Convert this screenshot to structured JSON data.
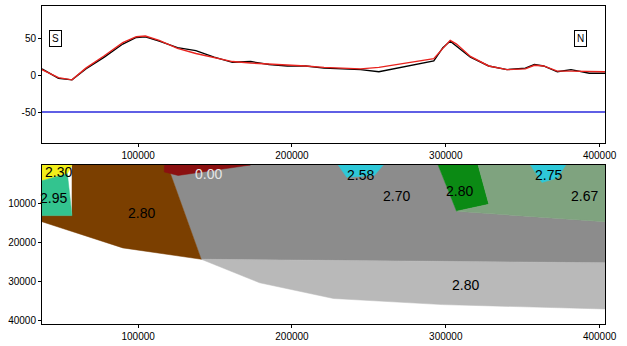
{
  "chart_data": [
    {
      "type": "line",
      "xlim": [
        37500,
        403500
      ],
      "xticks": [
        100000,
        200000,
        300000,
        400000
      ],
      "ylim": [
        -92,
        95
      ],
      "yticks": [
        -50,
        0,
        50
      ],
      "annotations": [
        {
          "text": "S",
          "x": 46400,
          "y": 51
        },
        {
          "text": "N",
          "x": 387400,
          "y": 51
        }
      ],
      "series": [
        {
          "color": "#000000",
          "x": [
            37500,
            48200,
            57000,
            66000,
            78000,
            90000,
            98800,
            104700,
            113700,
            125600,
            137500,
            149400,
            161300,
            173200,
            185100,
            197000,
            208900,
            220800,
            232700,
            244600,
            256500,
            268400,
            280300,
            292200,
            298100,
            302900,
            307000,
            316000,
            327900,
            339800,
            351700,
            357600,
            363600,
            372500,
            381400,
            393300,
            403500
          ],
          "values": [
            9,
            -4,
            -6,
            9,
            25,
            43,
            52,
            53,
            47,
            38,
            34,
            25,
            18,
            19,
            15,
            13,
            13,
            10,
            9,
            8,
            5,
            10,
            15,
            20,
            38,
            47,
            40,
            25,
            13,
            8,
            10,
            15,
            13,
            5,
            8,
            3,
            3
          ]
        },
        {
          "color": "#e8231e",
          "x": [
            37500,
            48200,
            57000,
            66000,
            78000,
            90000,
            98800,
            104700,
            113700,
            125600,
            137500,
            149400,
            161300,
            173200,
            185100,
            197000,
            208900,
            220800,
            232700,
            244600,
            256500,
            268400,
            280300,
            292200,
            298100,
            302900,
            307000,
            316000,
            327900,
            339800,
            351700,
            357600,
            363600,
            372500,
            381400,
            393300,
            403500
          ],
          "values": [
            8,
            -3,
            -6,
            10,
            27,
            45,
            53,
            54,
            48,
            37,
            30,
            24,
            19,
            17,
            16,
            14,
            13,
            11,
            10,
            9,
            11,
            15,
            19,
            23,
            37,
            48,
            43,
            26,
            13,
            8,
            9,
            14,
            13,
            6,
            6,
            5,
            5
          ]
        },
        {
          "color": "#2a2adc",
          "x": [
            37500,
            403500
          ],
          "values": [
            -50,
            -50
          ]
        }
      ]
    },
    {
      "type": "polygon",
      "xlim": [
        37500,
        403500
      ],
      "xticks": [
        100000,
        200000,
        300000,
        400000
      ],
      "ylim": [
        41000,
        0
      ],
      "yticks": [
        10000,
        20000,
        30000,
        40000
      ],
      "polygons": [
        {
          "label": "2.70",
          "color": "#8c8c8c",
          "label_at": [
            268000,
            7900
          ],
          "x": [
            117000,
            295000,
            307000,
            403500,
            403500,
            141000,
            120000
          ],
          "y": [
            0,
            0,
            11925,
            14625,
            25200,
            24300,
            1125
          ]
        },
        {
          "label": "2.80",
          "color": "#b9b9b9",
          "label_at": [
            313000,
            31000
          ],
          "x": [
            141000,
            403500,
            403500,
            298000,
            227000,
            179000
          ],
          "y": [
            24300,
            25200,
            37125,
            36000,
            34425,
            30375
          ]
        },
        {
          "label": "2.80",
          "color": "#7b3f00",
          "label_at": [
            102000,
            12400
          ],
          "x": [
            57000,
            117000,
            120000,
            141000,
            90000,
            37500,
            37500,
            57000
          ],
          "y": [
            0,
            0,
            1125,
            24300,
            21375,
            14625,
            13050,
            13050
          ]
        },
        {
          "label": "2.30",
          "color": "#f2ee1a",
          "label_at": [
            48200,
            1800
          ],
          "x": [
            37500,
            57000,
            54000,
            37500
          ],
          "y": [
            0,
            0,
            2250,
            4050
          ]
        },
        {
          "label": "2.95",
          "color": "#33c48f",
          "label_at": [
            45000,
            8500
          ],
          "x": [
            37500,
            54000,
            57000,
            37500
          ],
          "y": [
            4050,
            2250,
            13050,
            13050
          ]
        },
        {
          "label": "0.00",
          "color": "#8b1010",
          "label_at": [
            146000,
            2250
          ],
          "x": [
            117000,
            173000,
            126000,
            117000
          ],
          "y": [
            0,
            0,
            2700,
            1800
          ]
        },
        {
          "label": "2.58",
          "color": "#2ec8d8",
          "label_at": [
            244600,
            2700
          ],
          "x": [
            230000,
            259400,
            253500,
            235600
          ],
          "y": [
            0,
            0,
            2700,
            3150
          ]
        },
        {
          "label": "2.80",
          "color": "#0b8a14",
          "label_at": [
            309000,
            6750
          ],
          "x": [
            295000,
            321000,
            328000,
            307000
          ],
          "y": [
            0,
            0,
            10125,
            11925
          ]
        },
        {
          "label": "2.67",
          "color": "#7fa37f",
          "label_at": [
            390000,
            7900
          ],
          "x": [
            321000,
            403500,
            403500,
            307000,
            328000
          ],
          "y": [
            0,
            0,
            14625,
            11925,
            10125
          ]
        },
        {
          "label": "2.75",
          "color": "#2ec8d8",
          "label_at": [
            366500,
            2700
          ],
          "x": [
            355000,
            378000,
            372500,
            362500
          ],
          "y": [
            0,
            0,
            3375,
            4500
          ]
        }
      ]
    }
  ]
}
